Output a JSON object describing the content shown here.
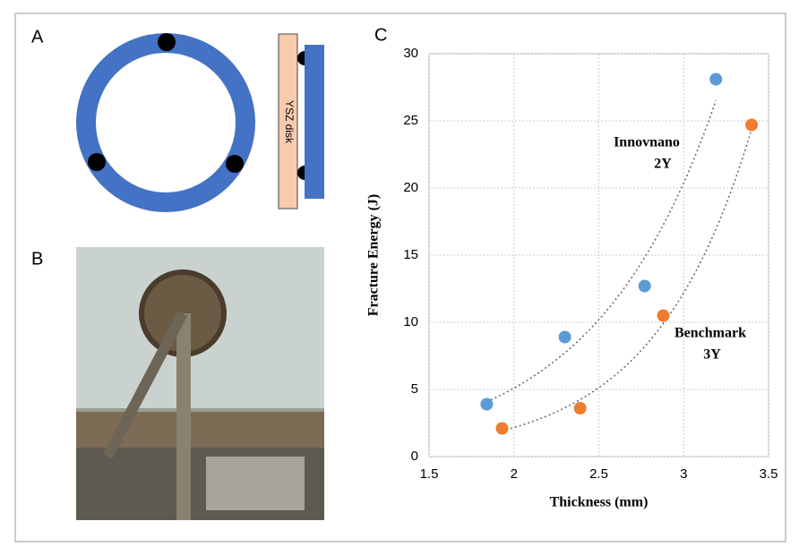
{
  "panel_labels": [
    "A",
    "B",
    "C"
  ],
  "diagram_label": "YSZ disk",
  "chart_data": {
    "type": "scatter",
    "x_label": "Thickness (mm)",
    "y_label": "Fracture Energy (J)",
    "xlim": [
      1.5,
      3.5
    ],
    "xticks": [
      1.5,
      2,
      2.5,
      3,
      3.5
    ],
    "ylim": [
      0,
      30
    ],
    "yticks": [
      0,
      5,
      10,
      15,
      20,
      25,
      30
    ],
    "grid": true,
    "trendline": "exponential",
    "annotations": [
      "Innovnano",
      "2Y",
      "Benchmark",
      "3Y"
    ],
    "series": [
      {
        "color": "#5b9bd5",
        "x": [
          1.84,
          2.3,
          2.77,
          3.19
        ],
        "values": [
          3.9,
          8.9,
          12.7,
          28.1
        ]
      },
      {
        "color": "#ed7d31",
        "x": [
          1.93,
          2.39,
          2.88,
          3.4
        ],
        "values": [
          2.1,
          3.6,
          10.5,
          24.7
        ]
      }
    ]
  }
}
